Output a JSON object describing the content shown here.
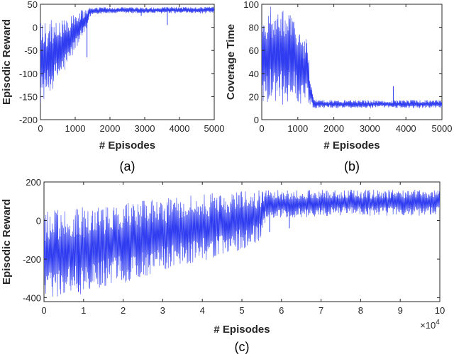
{
  "colors": {
    "series": "#2f3cf0",
    "axis": "#262626",
    "background": "#ffffff"
  },
  "chart_data": [
    {
      "id": "a",
      "type": "line",
      "caption": "(a)",
      "xlabel": "# Episodes",
      "ylabel": "Episodic Reward",
      "xlim": [
        0,
        5000
      ],
      "ylim": [
        -200,
        50
      ],
      "xticks": [
        0,
        1000,
        2000,
        3000,
        4000,
        5000
      ],
      "yticks": [
        -200,
        -150,
        -100,
        -50,
        0,
        50
      ],
      "grid": false,
      "x_step": 10,
      "series": [
        {
          "color": "#2f3cf0",
          "envelope": {
            "x": [
              0,
              200,
              500,
              800,
              1000,
              1200,
              1350,
              1400,
              1500,
              1800,
              2000,
              2500,
              3000,
              3500,
              4000,
              4500,
              5000
            ],
            "upper": [
              10,
              15,
              18,
              25,
              30,
              38,
              42,
              45,
              42,
              44,
              43,
              44,
              43,
              44,
              44,
              44,
              45
            ],
            "lower": [
              -165,
              -150,
              -120,
              -85,
              -50,
              -25,
              -5,
              20,
              28,
              30,
              30,
              30,
              30,
              30,
              30,
              30,
              30
            ]
          },
          "outliers": [
            [
              1340,
              -65
            ],
            [
              3650,
              5
            ],
            [
              2900,
              25
            ]
          ]
        }
      ]
    },
    {
      "id": "b",
      "type": "line",
      "caption": "(b)",
      "xlabel": "# Episodes",
      "ylabel": "Coverage Time",
      "xlim": [
        0,
        5000
      ],
      "ylim": [
        0,
        100
      ],
      "xticks": [
        0,
        1000,
        2000,
        3000,
        4000,
        5000
      ],
      "yticks": [
        0,
        20,
        40,
        60,
        80,
        100
      ],
      "grid": false,
      "x_step": 10,
      "series": [
        {
          "color": "#2f3cf0",
          "envelope": {
            "x": [
              0,
              300,
              600,
              900,
              1000,
              1100,
              1200,
              1300,
              1350,
              1450,
              1600,
              2000,
              3000,
              4000,
              5000
            ],
            "upper": [
              100,
              100,
              100,
              100,
              85,
              65,
              75,
              60,
              35,
              18,
              17,
              17,
              17,
              17,
              17
            ],
            "lower": [
              15,
              14,
              13,
              12,
              12,
              12,
              12,
              12,
              11,
              10,
              10,
              10,
              10,
              10,
              10
            ]
          },
          "outliers": [
            [
              3650,
              29
            ]
          ]
        }
      ]
    },
    {
      "id": "c",
      "type": "line",
      "caption": "(c)",
      "xlabel": "# Episodes",
      "ylabel": "Episodic Reward",
      "xlim": [
        0,
        100000
      ],
      "ylim": [
        -420,
        200
      ],
      "xticks": [
        0,
        10000,
        20000,
        30000,
        40000,
        50000,
        60000,
        70000,
        80000,
        90000,
        100000
      ],
      "xticklabels": [
        "0",
        "1",
        "2",
        "3",
        "4",
        "5",
        "6",
        "7",
        "8",
        "9",
        "10"
      ],
      "x_exponent_base": "×10",
      "x_exponent_power": "4",
      "yticks": [
        -400,
        -200,
        0,
        200
      ],
      "grid": false,
      "x_step": 100,
      "series": [
        {
          "color": "#2f3cf0",
          "envelope": {
            "x": [
              0,
              10000,
              20000,
              30000,
              40000,
              50000,
              55000,
              56000,
              60000,
              70000,
              80000,
              90000,
              100000
            ],
            "upper": [
              50,
              70,
              95,
              120,
              140,
              155,
              158,
              160,
              160,
              160,
              160,
              160,
              160
            ],
            "lower": [
              -410,
              -380,
              -330,
              -270,
              -210,
              -150,
              -100,
              0,
              10,
              20,
              25,
              25,
              25
            ]
          },
          "outliers": [
            [
              8700,
              -370
            ],
            [
              57000,
              -60
            ],
            [
              62000,
              -40
            ]
          ]
        }
      ]
    }
  ]
}
